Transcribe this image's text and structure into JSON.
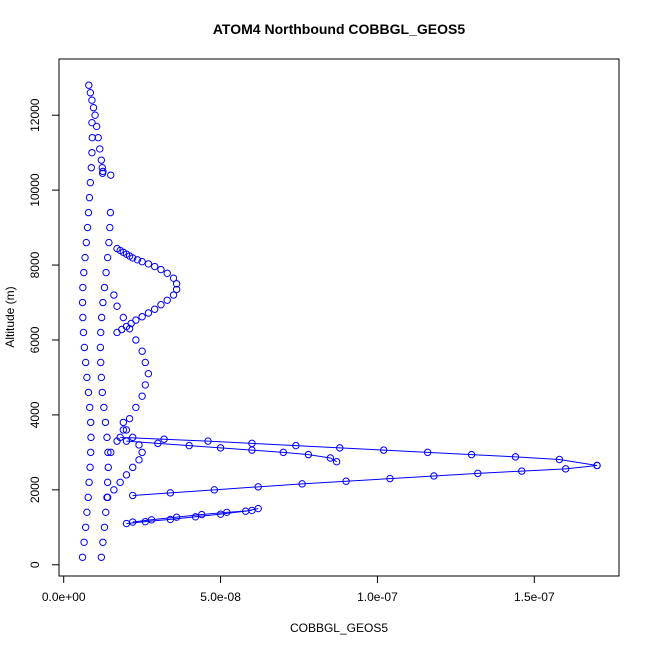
{
  "chart_data": {
    "type": "scatter",
    "title": "ATOM4 Northbound COBBGL_GEOS5",
    "xlabel": "COBBGL_GEOS5",
    "ylabel": "Altitude (m)",
    "xlim": [
      -1.5e-09,
      1.77e-07
    ],
    "ylim": [
      -300,
      13500
    ],
    "xticks": [
      0,
      5e-08,
      1e-07,
      1.5e-07
    ],
    "xtick_labels": [
      "0.0e+00",
      "5.0e-08",
      "1.0e-07",
      "1.5e-07"
    ],
    "yticks": [
      0,
      2000,
      4000,
      6000,
      8000,
      10000,
      12000
    ],
    "ytick_labels": [
      "0",
      "2000",
      "4000",
      "6000",
      "8000",
      "10000",
      "12000"
    ],
    "grid": false,
    "marker": "open-circle",
    "color": "#0000ff",
    "series": [
      {
        "style": "points",
        "x": [
          6e-09,
          6.5e-09,
          7e-09,
          7.4e-09,
          7.8e-09,
          8.1e-09,
          8.4e-09,
          8.6e-09,
          8.7e-09,
          8.6e-09,
          8.3e-09,
          7.9e-09,
          7.4e-09,
          7e-09,
          6.6e-09,
          6.3e-09,
          6.1e-09,
          6e-09,
          6.1e-09,
          6.4e-09,
          6.8e-09,
          7.2e-09,
          7.6e-09,
          7.9e-09,
          8.2e-09,
          8.5e-09,
          8.8e-09,
          9e-09,
          9.1e-09,
          9e-09
        ],
        "y": [
          200,
          600,
          1000,
          1400,
          1800,
          2200,
          2600,
          3000,
          3400,
          3800,
          4200,
          4600,
          5000,
          5400,
          5800,
          6200,
          6600,
          7000,
          7400,
          7800,
          8200,
          8600,
          9000,
          9400,
          9800,
          10200,
          10600,
          11000,
          11400,
          11800
        ]
      },
      {
        "style": "points",
        "x": [
          1.2e-08,
          1.25e-08,
          1.3e-08,
          1.34e-08,
          1.38e-08,
          1.4e-08,
          1.42e-08,
          1.41e-08,
          1.38e-08,
          1.33e-08,
          1.28e-08,
          1.23e-08,
          1.2e-08,
          1.18e-08,
          1.17e-08,
          1.18e-08,
          1.21e-08,
          1.25e-08,
          1.3e-08,
          1.35e-08,
          1.4e-08,
          1.44e-08,
          1.47e-08,
          1.49e-08,
          1.5e-08
        ],
        "y": [
          200,
          600,
          1000,
          1400,
          1800,
          2200,
          2600,
          3000,
          3400,
          3800,
          4200,
          4600,
          5000,
          5400,
          5800,
          6200,
          6600,
          7000,
          7400,
          7800,
          8200,
          8600,
          9000,
          9400,
          10400
        ]
      },
      {
        "style": "points",
        "x": [
          1.7e-08,
          1.85e-08,
          2e-08,
          2.15e-08,
          2.3e-08,
          2.5e-08,
          2.7e-08,
          2.9e-08,
          3.1e-08,
          3.3e-08,
          3.5e-08,
          3.6e-08,
          3.6e-08,
          3.5e-08,
          3.3e-08,
          3.1e-08,
          2.9e-08,
          2.7e-08,
          2.5e-08,
          2.35e-08,
          2.2e-08,
          2.1e-08,
          2e-08,
          1.9e-08,
          1.8e-08,
          1.7e-08
        ],
        "y": [
          6200,
          6280,
          6360,
          6440,
          6530,
          6620,
          6720,
          6820,
          6940,
          7060,
          7200,
          7350,
          7500,
          7650,
          7780,
          7880,
          7960,
          8030,
          8090,
          8140,
          8190,
          8240,
          8290,
          8340,
          8390,
          8440
        ]
      },
      {
        "style": "points",
        "x": [
          8e-09,
          8.5e-09,
          9e-09,
          9.5e-09,
          1e-08,
          1.05e-08,
          1.1e-08,
          1.15e-08,
          1.2e-08,
          1.23e-08,
          1.25e-08,
          1.24e-08
        ],
        "y": [
          12800,
          12600,
          12400,
          12200,
          12000,
          11700,
          11400,
          11100,
          10800,
          10600,
          10500,
          10450
        ]
      },
      {
        "style": "points",
        "x": [
          1.5e-08,
          1.7e-08,
          1.9e-08,
          2.1e-08,
          2.3e-08,
          2.5e-08,
          2.6e-08,
          2.7e-08,
          2.6e-08,
          2.5e-08,
          2.3e-08,
          2.1e-08,
          1.9e-08,
          1.7e-08,
          1.6e-08
        ],
        "y": [
          3000,
          3300,
          3600,
          3900,
          4200,
          4500,
          4800,
          5100,
          5400,
          5700,
          6000,
          6300,
          6600,
          6900,
          7200
        ]
      },
      {
        "style": "points",
        "x": [
          1.4e-08,
          1.6e-08,
          1.8e-08,
          2e-08,
          2.2e-08,
          2.4e-08,
          2.5e-08,
          2.4e-08,
          2.2e-08,
          2e-08,
          1.9e-08
        ],
        "y": [
          1800,
          2000,
          2200,
          2400,
          2600,
          2800,
          3000,
          3200,
          3400,
          3600,
          3800
        ]
      },
      {
        "style": "line",
        "x": [
          1.8e-08,
          3.2e-08,
          4.6e-08,
          6e-08,
          7.4e-08,
          8.8e-08,
          1.02e-07,
          1.16e-07,
          1.3e-07,
          1.44e-07,
          1.58e-07,
          1.7e-07
        ],
        "y": [
          3400,
          3350,
          3300,
          3240,
          3180,
          3120,
          3060,
          3000,
          2940,
          2880,
          2810,
          2650
        ]
      },
      {
        "style": "line",
        "x": [
          1.7e-07,
          1.6e-07,
          1.46e-07,
          1.32e-07,
          1.18e-07,
          1.04e-07,
          9e-08,
          7.6e-08,
          6.2e-08,
          4.8e-08,
          3.4e-08,
          2.2e-08
        ],
        "y": [
          2650,
          2560,
          2500,
          2440,
          2370,
          2300,
          2230,
          2160,
          2080,
          2000,
          1920,
          1850
        ]
      },
      {
        "style": "line",
        "x": [
          2e-08,
          3e-08,
          4e-08,
          5e-08,
          6e-08,
          7e-08,
          7.8e-08,
          8.5e-08,
          8.7e-08
        ],
        "y": [
          3300,
          3240,
          3180,
          3120,
          3060,
          3000,
          2940,
          2850,
          2750
        ]
      },
      {
        "style": "line",
        "x": [
          2e-08,
          2.6e-08,
          3.4e-08,
          4.2e-08,
          5e-08,
          5.8e-08,
          6.2e-08
        ],
        "y": [
          1100,
          1150,
          1210,
          1280,
          1350,
          1430,
          1500
        ]
      },
      {
        "style": "line",
        "x": [
          6e-08,
          5.2e-08,
          4.4e-08,
          3.6e-08,
          2.8e-08,
          2.2e-08
        ],
        "y": [
          1450,
          1400,
          1340,
          1270,
          1200,
          1140
        ]
      }
    ]
  }
}
